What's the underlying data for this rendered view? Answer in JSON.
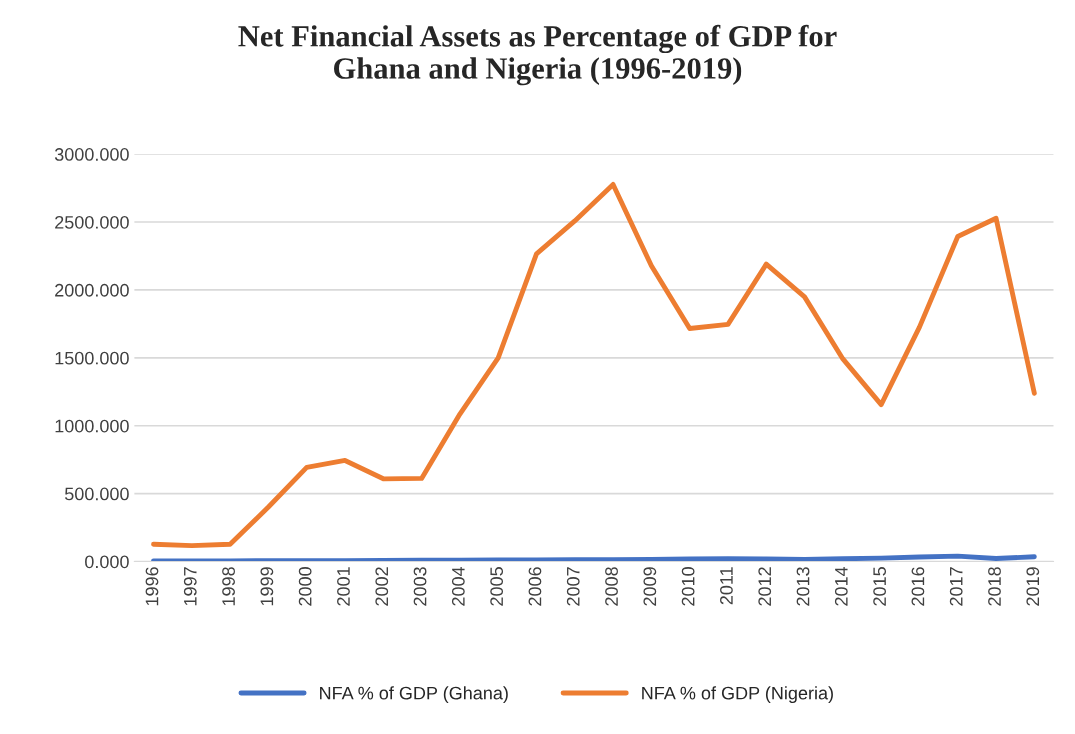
{
  "chart_data": {
    "type": "line",
    "title": "Net Financial Assets as Percentage of GDP for\nGhana and Nigeria (1996-2019)",
    "categories": [
      "1996",
      "1997",
      "1998",
      "1999",
      "2000",
      "2001",
      "2002",
      "2003",
      "2004",
      "2005",
      "2006",
      "2007",
      "2008",
      "2009",
      "2010",
      "2011",
      "2012",
      "2013",
      "2014",
      "2015",
      "2016",
      "2017",
      "2018",
      "2019"
    ],
    "series": [
      {
        "name": "NFA % of GDP (Ghana)",
        "color": "#4472c4",
        "values": [
          5,
          5,
          5,
          6,
          6,
          7,
          8,
          9,
          10,
          11,
          12,
          13,
          14,
          16,
          19,
          21,
          19,
          15,
          20,
          25,
          33,
          40,
          22,
          35
        ]
      },
      {
        "name": "NFA % of GDP (Nigeria)",
        "color": "#ed7d31",
        "values": [
          127,
          117,
          127,
          401,
          693,
          744,
          609,
          612,
          1086,
          1500,
          2266,
          2508,
          2777,
          2178,
          1716,
          1746,
          2190,
          1949,
          1492,
          1155,
          1726,
          2393,
          2528,
          1239
        ]
      }
    ],
    "ylim": [
      0,
      3000
    ],
    "yticks": [
      {
        "value": 0,
        "label": "0.000"
      },
      {
        "value": 500,
        "label": "500.000"
      },
      {
        "value": 1000,
        "label": "1000.000"
      },
      {
        "value": 1500,
        "label": "1500.000"
      },
      {
        "value": 2000,
        "label": "2000.000"
      },
      {
        "value": 2500,
        "label": "2500.000"
      },
      {
        "value": 3000,
        "label": "3000.000"
      }
    ],
    "grid": "y",
    "legend": "bottom",
    "marker": "none",
    "line_style": "solid"
  }
}
